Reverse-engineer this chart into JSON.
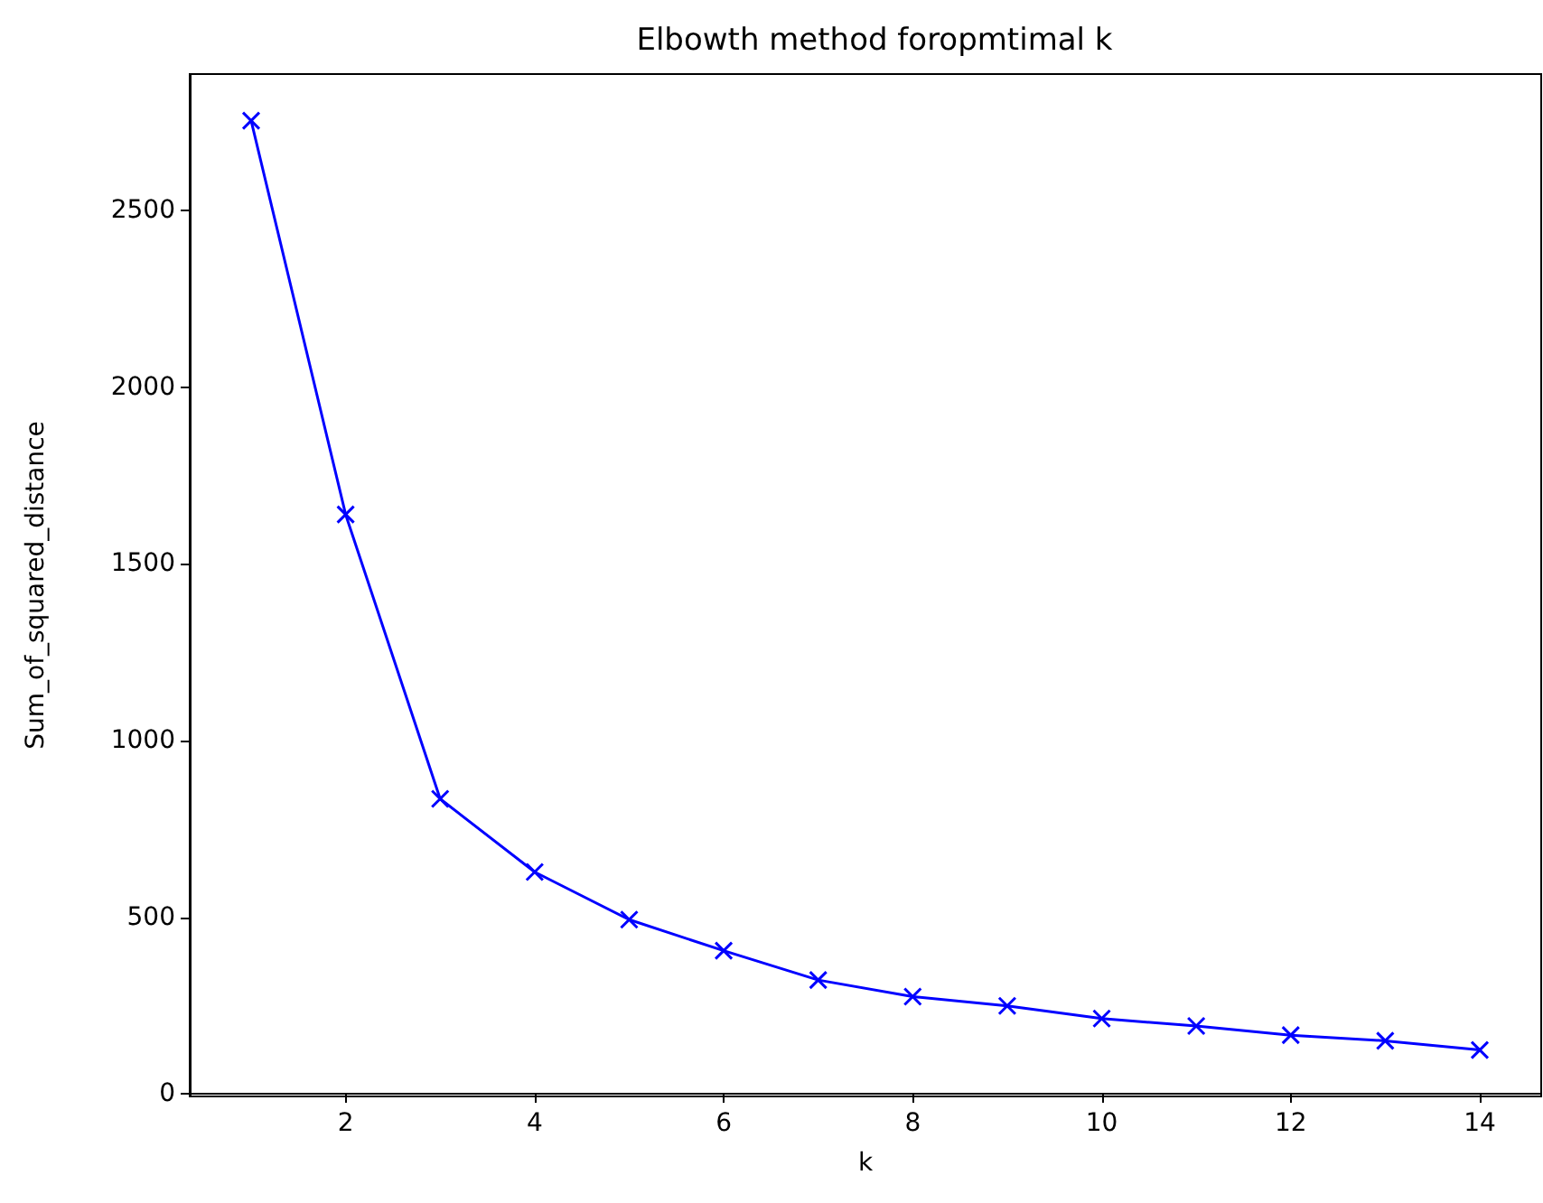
{
  "chart_data": {
    "type": "line",
    "title": "Elbowth method foropmtimal k",
    "xlabel": "k",
    "ylabel": "Sum_of_squared_distance",
    "x": [
      1,
      2,
      3,
      4,
      5,
      6,
      7,
      8,
      9,
      10,
      11,
      12,
      13,
      14
    ],
    "series": [
      {
        "color": "#0000ff",
        "values": [
          2755,
          1640,
          835,
          628,
          493,
          405,
          322,
          275,
          249,
          213,
          192,
          166,
          150,
          124
        ]
      }
    ],
    "xlim": [
      0.35,
      14.65
    ],
    "xticks": [
      2,
      4,
      6,
      8,
      10,
      12,
      14
    ],
    "ylim": [
      -7.5,
      2887
    ],
    "yticks": [
      0,
      500,
      1000,
      1500,
      2000,
      2500
    ],
    "marker": "cross",
    "line_style": "solid"
  }
}
